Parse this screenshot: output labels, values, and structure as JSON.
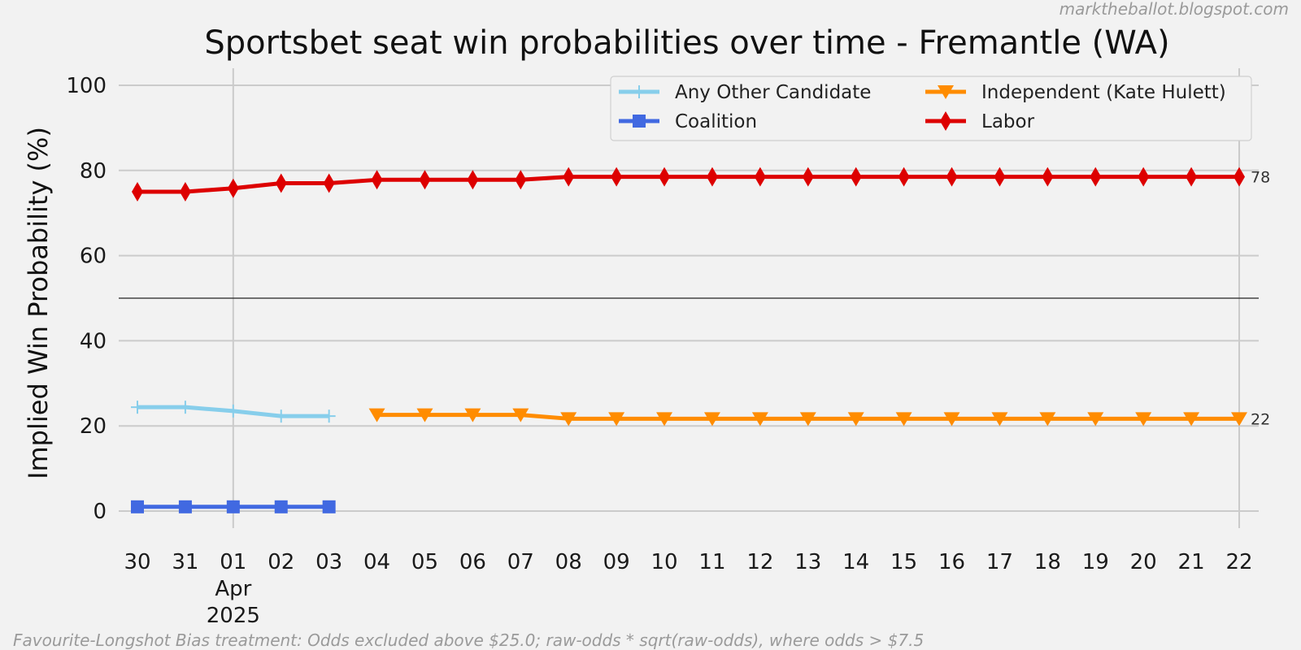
{
  "chart_data": {
    "type": "line",
    "title": "Sportsbet seat win probabilities over time - Fremantle (WA)",
    "ylabel": "Implied Win Probability (%)",
    "xlabel": "",
    "ylim": [
      -4,
      104
    ],
    "yticks": [
      0,
      20,
      40,
      60,
      80,
      100
    ],
    "reference_line": 50,
    "grid": true,
    "legend_placement": "top-right",
    "x": [
      "2025-03-30",
      "2025-03-31",
      "2025-04-01",
      "2025-04-02",
      "2025-04-03",
      "2025-04-04",
      "2025-04-05",
      "2025-04-06",
      "2025-04-07",
      "2025-04-08",
      "2025-04-09",
      "2025-04-10",
      "2025-04-11",
      "2025-04-12",
      "2025-04-13",
      "2025-04-14",
      "2025-04-15",
      "2025-04-16",
      "2025-04-17",
      "2025-04-18",
      "2025-04-19",
      "2025-04-20",
      "2025-04-21",
      "2025-04-22"
    ],
    "x_tick_labels": [
      "30",
      "31",
      "01",
      "02",
      "03",
      "04",
      "05",
      "06",
      "07",
      "08",
      "09",
      "10",
      "11",
      "12",
      "13",
      "14",
      "15",
      "16",
      "17",
      "18",
      "19",
      "20",
      "21",
      "22"
    ],
    "x_sub_labels": [
      {
        "date": "2025-04-01",
        "lines": [
          "Apr",
          "2025"
        ]
      }
    ],
    "series": [
      {
        "name": "Any Other Candidate",
        "color": "#87ceeb",
        "marker": "plus",
        "values": [
          24.4,
          24.4,
          23.5,
          22.3,
          22.3,
          null,
          null,
          null,
          null,
          null,
          null,
          null,
          null,
          null,
          null,
          null,
          null,
          null,
          null,
          null,
          null,
          null,
          null,
          null
        ]
      },
      {
        "name": "Coalition",
        "color": "#4169e1",
        "marker": "square",
        "values": [
          1.0,
          1.0,
          1.0,
          1.0,
          1.0,
          null,
          null,
          null,
          null,
          null,
          null,
          null,
          null,
          null,
          null,
          null,
          null,
          null,
          null,
          null,
          null,
          null,
          null,
          null
        ]
      },
      {
        "name": "Independent (Kate Hulett)",
        "color": "#ff8c00",
        "marker": "triangle-down",
        "values": [
          null,
          null,
          null,
          null,
          null,
          22.6,
          22.6,
          22.6,
          22.6,
          21.7,
          21.7,
          21.7,
          21.7,
          21.7,
          21.7,
          21.7,
          21.7,
          21.7,
          21.7,
          21.7,
          21.7,
          21.7,
          21.7,
          21.7
        ]
      },
      {
        "name": "Labor",
        "color": "#dd0000",
        "marker": "diamond",
        "values": [
          75.0,
          75.0,
          75.8,
          77.0,
          77.0,
          77.8,
          77.8,
          77.8,
          77.8,
          78.5,
          78.5,
          78.5,
          78.5,
          78.5,
          78.5,
          78.5,
          78.5,
          78.5,
          78.5,
          78.5,
          78.5,
          78.5,
          78.5,
          78.5
        ]
      }
    ],
    "end_labels": [
      {
        "value": 78.5,
        "text": "78"
      },
      {
        "value": 21.7,
        "text": "22"
      }
    ]
  },
  "watermark": "marktheballot.blogspot.com",
  "footnote": "Favourite-Longshot Bias treatment: Odds excluded above $25.0; raw-odds * sqrt(raw-odds), where odds > $7.5"
}
